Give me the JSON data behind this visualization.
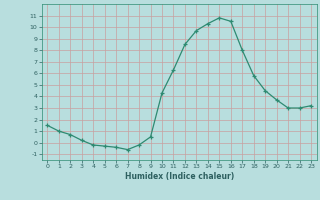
{
  "x": [
    0,
    1,
    2,
    3,
    4,
    5,
    6,
    7,
    8,
    9,
    10,
    11,
    12,
    13,
    14,
    15,
    16,
    17,
    18,
    19,
    20,
    21,
    22,
    23
  ],
  "y": [
    1.5,
    1.0,
    0.7,
    0.2,
    -0.2,
    -0.3,
    -0.4,
    -0.6,
    -0.2,
    0.5,
    4.3,
    6.3,
    8.5,
    9.7,
    10.3,
    10.8,
    10.5,
    8.0,
    5.8,
    4.5,
    3.7,
    3.0,
    3.0,
    3.2
  ],
  "xlabel": "Humidex (Indice chaleur)",
  "xlim": [
    -0.5,
    23.5
  ],
  "ylim": [
    -1.5,
    12
  ],
  "yticks": [
    -1,
    0,
    1,
    2,
    3,
    4,
    5,
    6,
    7,
    8,
    9,
    10,
    11
  ],
  "xticks": [
    0,
    1,
    2,
    3,
    4,
    5,
    6,
    7,
    8,
    9,
    10,
    11,
    12,
    13,
    14,
    15,
    16,
    17,
    18,
    19,
    20,
    21,
    22,
    23
  ],
  "line_color": "#2e8b72",
  "marker": "+",
  "bg_color": "#b8dede",
  "grid_color": "#c8a0a0",
  "fig_bg": "#b8dede",
  "spine_color": "#2e8b72",
  "tick_color": "#2e6060",
  "label_color": "#2e6060"
}
